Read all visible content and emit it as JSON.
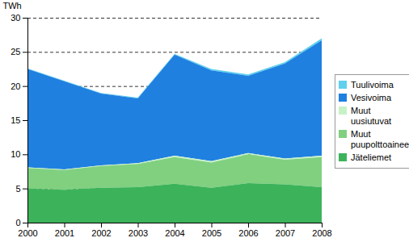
{
  "chart_data": {
    "type": "area",
    "stacked": true,
    "grid": true,
    "legend": "right",
    "x": [
      2000,
      2001,
      2002,
      2003,
      2004,
      2005,
      2006,
      2007,
      2008
    ],
    "xlim": [
      2000,
      2008
    ],
    "xticks": [
      2000,
      2001,
      2002,
      2003,
      2004,
      2005,
      2006,
      2007,
      2008
    ],
    "ylabel": "TWh",
    "ylim": [
      0,
      30
    ],
    "yticks": [
      0,
      5,
      10,
      15,
      20,
      25,
      30
    ],
    "series": [
      {
        "name": "Tuulivoima",
        "color": "#5fd0ee",
        "values": [
          0.1,
          0.1,
          0.1,
          0.1,
          0.1,
          0.2,
          0.2,
          0.2,
          0.3
        ]
      },
      {
        "name": "Vesivoima",
        "color": "#1f80e0",
        "values": [
          14.4,
          12.9,
          10.5,
          9.5,
          14.8,
          13.3,
          11.3,
          13.9,
          16.9
        ]
      },
      {
        "name": "Muut uusiutuvat",
        "color": "#c6f2c6",
        "values": [
          0.1,
          0.1,
          0.1,
          0.1,
          0.2,
          0.2,
          0.2,
          0.2,
          0.2
        ]
      },
      {
        "name": "Muut puupolttoaineet",
        "color": "#80d080",
        "values": [
          3.0,
          2.9,
          3.2,
          3.4,
          3.9,
          3.7,
          4.2,
          3.6,
          4.4
        ]
      },
      {
        "name": "Jäteliemet",
        "color": "#3cb35a",
        "values": [
          5.0,
          4.8,
          5.1,
          5.2,
          5.7,
          5.1,
          5.8,
          5.6,
          5.2
        ]
      }
    ]
  }
}
